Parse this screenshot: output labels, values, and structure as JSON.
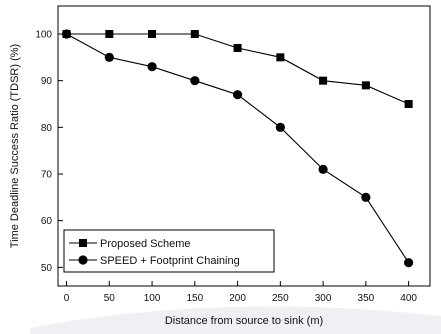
{
  "chart_data": {
    "type": "line",
    "title": "",
    "xlabel": "Distance from source to sink (m)",
    "ylabel": "Time Deadline Success Ratio (TDSR) (%)",
    "xlim": [
      -10,
      425
    ],
    "ylim": [
      46,
      106
    ],
    "x_ticks": [
      0,
      50,
      100,
      150,
      200,
      250,
      300,
      350,
      400
    ],
    "y_ticks": [
      50,
      60,
      70,
      80,
      90,
      100
    ],
    "grid": false,
    "legend_position": "bottom-left",
    "series": [
      {
        "name": "Proposed Scheme",
        "marker": "square",
        "color": "#000000",
        "x": [
          0,
          50,
          100,
          150,
          200,
          250,
          300,
          350,
          400
        ],
        "y": [
          100,
          100,
          100,
          100,
          97,
          95,
          90,
          89,
          85
        ]
      },
      {
        "name": "SPEED + Footprint Chaining",
        "marker": "circle",
        "color": "#000000",
        "x": [
          0,
          50,
          100,
          150,
          200,
          250,
          300,
          350,
          400
        ],
        "y": [
          100,
          95,
          93,
          90,
          87,
          80,
          71,
          65,
          51
        ]
      }
    ]
  }
}
